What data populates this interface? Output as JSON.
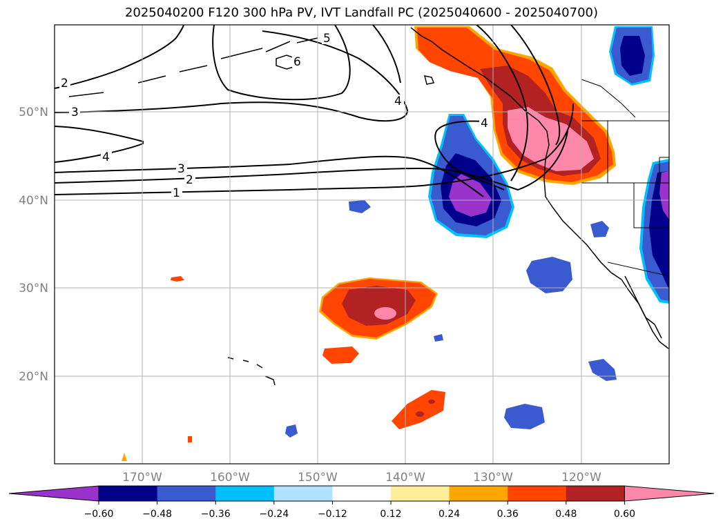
{
  "title": "2025040200 F120 300 hPa PV, IVT Landfall PC (2025040600 - 2025040700)",
  "lat_labels": [
    "50°N",
    "40°N",
    "30°N",
    "20°N"
  ],
  "lon_labels": [
    "170°W",
    "160°W",
    "150°W",
    "140°W",
    "130°W",
    "120°W"
  ],
  "contour_labels": [
    "2",
    "3",
    "4",
    "3",
    "2",
    "1",
    "5",
    "6",
    "4",
    "4"
  ],
  "colorbar": {
    "colors": [
      "#9933cc",
      "#00008b",
      "#3a5bcf",
      "#00bfff",
      "#b0e2ff",
      "#ffffff",
      "#ffee99",
      "#ffa500",
      "#ff4500",
      "#b22222",
      "#ff88aa"
    ],
    "ticks": [
      "−0.60",
      "−0.48",
      "−0.36",
      "−0.24",
      "−0.12",
      "0.12",
      "0.24",
      "0.36",
      "0.48",
      "0.60"
    ]
  },
  "colors": {
    "pink": "#ff88aa",
    "darkred": "#b22222",
    "orangered": "#ff4500",
    "orange": "#ffa500",
    "yellow": "#ffee99",
    "lightblue": "#b0e2ff",
    "cyan": "#00bfff",
    "blue": "#3a5bcf",
    "navy": "#00008b",
    "purple": "#9933cc"
  }
}
